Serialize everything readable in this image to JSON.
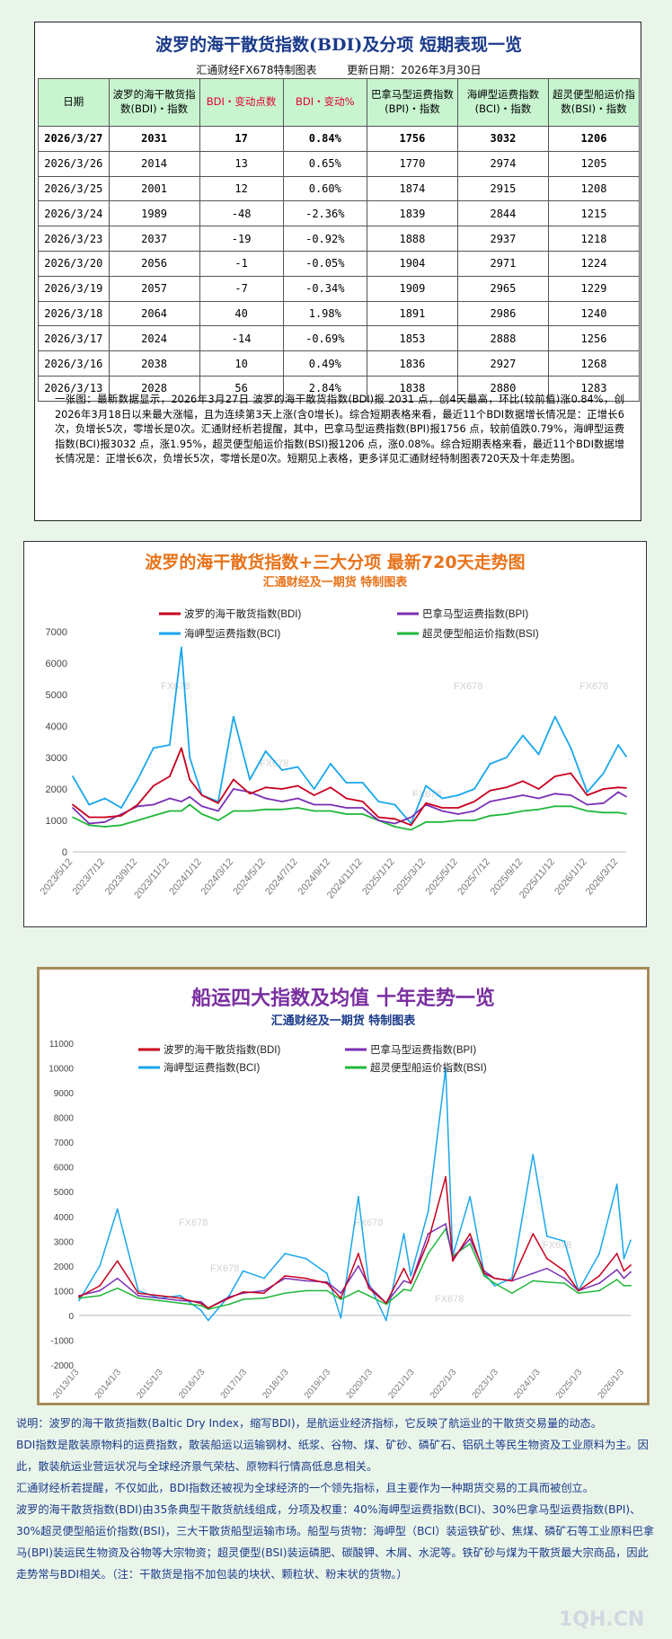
{
  "table": {
    "title": "波罗的海干散货指数(BDI)及分项  短期表现一览",
    "maker": "汇通财经FX678特制图表",
    "update": "更新日期：2026年3月30日",
    "headers": [
      "日期",
      "波罗的海干散货指数(BDI)・指数",
      "BDI・变动点数",
      "BDI・变动%",
      "巴拿马型运费指数(BPI)・指数",
      "海岬型运费指数(BCI)・指数",
      "超灵便型船运价指数(BSI)・指数"
    ],
    "rows": [
      [
        "2026/3/27",
        "2031",
        "17",
        "0.84%",
        "1756",
        "3032",
        "1206"
      ],
      [
        "2026/3/26",
        "2014",
        "13",
        "0.65%",
        "1770",
        "2974",
        "1205"
      ],
      [
        "2026/3/25",
        "2001",
        "12",
        "0.60%",
        "1874",
        "2915",
        "1208"
      ],
      [
        "2026/3/24",
        "1989",
        "-48",
        "-2.36%",
        "1839",
        "2844",
        "1215"
      ],
      [
        "2026/3/23",
        "2037",
        "-19",
        "-0.92%",
        "1888",
        "2937",
        "1218"
      ],
      [
        "2026/3/20",
        "2056",
        "-1",
        "-0.05%",
        "1904",
        "2971",
        "1224"
      ],
      [
        "2026/3/19",
        "2057",
        "-7",
        "-0.34%",
        "1909",
        "2965",
        "1229"
      ],
      [
        "2026/3/18",
        "2064",
        "40",
        "1.98%",
        "1891",
        "2986",
        "1240"
      ],
      [
        "2026/3/17",
        "2024",
        "-14",
        "-0.69%",
        "1853",
        "2888",
        "1256"
      ],
      [
        "2026/3/16",
        "2038",
        "10",
        "0.49%",
        "1836",
        "2927",
        "1268"
      ],
      [
        "2026/3/13",
        "2028",
        "56",
        "2.84%",
        "1838",
        "2880",
        "1283"
      ]
    ],
    "note": "一张图：最新数据显示，2026年3月27日 波罗的海干散货指数(BDI)报 2031 点，创4天最高，环比(较前值)涨0.84%，创2026年3月18日以来最大涨幅，且为连续第3天上涨(含0增长)。综合短期表格来看，最近11个BDI数据增长情况是：正增长6次，负增长5次，零增长是0次。汇通财经析若提醒，其中，巴拿马型运费指数(BPI)报1756 点，较前值跌0.79%，海岬型运费指数(BCI)报3032 点，涨1.95%，超灵便型船运价指数(BSI)报1206 点，涨0.08%。综合短期表格来看，最近11个BDI数据增长情况是：正增长6次，负增长5次，零增长是0次。短期见上表格，更多详见汇通财经特制图表720天及十年走势图。"
  },
  "colors": {
    "bdi": "#c8001e",
    "bpi": "#7b2fb5",
    "bci": "#1aa7ec",
    "bsi": "#1fb83a",
    "header_bg": "#c8f5d0",
    "accent_red": "#e0002a"
  },
  "chart_data": [
    {
      "type": "line",
      "title": "波罗的海干散货指数+三大分项  最新720天走势图",
      "subtitle": "汇通财经及一期货  特制图表",
      "watermark": "FX678",
      "ylim": [
        0,
        7000
      ],
      "yticks": [
        0,
        1000,
        2000,
        3000,
        4000,
        5000,
        6000,
        7000
      ],
      "xticks": [
        "2023/5/12",
        "2023/7/12",
        "2023/9/12",
        "2023/11/12",
        "2024/1/12",
        "2024/3/12",
        "2024/5/12",
        "2024/7/12",
        "2024/9/12",
        "2024/11/12",
        "2025/1/12",
        "2025/3/12",
        "2025/5/12",
        "2025/7/12",
        "2025/9/12",
        "2025/11/12",
        "2026/1/12",
        "2026/3/12"
      ],
      "x": [
        "2023/5/12",
        "2023/6/12",
        "2023/7/12",
        "2023/8/12",
        "2023/9/12",
        "2023/10/12",
        "2023/11/12",
        "2023/12/4",
        "2023/12/20",
        "2024/1/12",
        "2024/2/12",
        "2024/3/12",
        "2024/4/12",
        "2024/5/12",
        "2024/6/12",
        "2024/7/12",
        "2024/8/12",
        "2024/9/12",
        "2024/10/12",
        "2024/11/12",
        "2024/12/12",
        "2025/1/12",
        "2025/2/12",
        "2025/3/12",
        "2025/4/12",
        "2025/5/12",
        "2025/6/12",
        "2025/7/12",
        "2025/8/12",
        "2025/9/12",
        "2025/10/12",
        "2025/11/12",
        "2025/12/12",
        "2026/1/12",
        "2026/2/12",
        "2026/3/12",
        "2026/3/27"
      ],
      "series": [
        {
          "name": "波罗的海干散货指数(BDI)",
          "color": "#c8001e",
          "values": [
            1500,
            1100,
            1100,
            1150,
            1500,
            2100,
            2400,
            3300,
            2300,
            1800,
            1550,
            2300,
            1850,
            2050,
            2000,
            2100,
            1800,
            2050,
            1700,
            1600,
            1100,
            1050,
            850,
            1550,
            1400,
            1400,
            1600,
            1950,
            2050,
            2250,
            2000,
            2400,
            2500,
            1800,
            2000,
            2050,
            2031
          ]
        },
        {
          "name": "巴拿马型运费指数(BPI)",
          "color": "#7b2fb5",
          "values": [
            1400,
            900,
            950,
            1200,
            1450,
            1500,
            1700,
            1600,
            1750,
            1450,
            1300,
            2000,
            1900,
            1700,
            1600,
            1700,
            1500,
            1500,
            1400,
            1400,
            1000,
            900,
            1100,
            1500,
            1300,
            1200,
            1300,
            1600,
            1700,
            1800,
            1700,
            1850,
            1800,
            1500,
            1550,
            1900,
            1756
          ]
        },
        {
          "name": "海岬型运费指数(BCI)",
          "color": "#1aa7ec",
          "values": [
            2400,
            1500,
            1700,
            1400,
            2300,
            3300,
            3400,
            6500,
            3000,
            1800,
            1600,
            4300,
            2300,
            3200,
            2600,
            2700,
            2000,
            2800,
            2200,
            2200,
            1600,
            1500,
            900,
            2100,
            1700,
            1800,
            2000,
            2800,
            3000,
            3700,
            3100,
            4300,
            3300,
            1900,
            2500,
            3400,
            3032
          ]
        },
        {
          "name": "超灵便型船运价指数(BSI)",
          "color": "#1fb83a",
          "values": [
            1100,
            850,
            800,
            850,
            1000,
            1150,
            1300,
            1300,
            1500,
            1200,
            1000,
            1300,
            1300,
            1350,
            1350,
            1400,
            1300,
            1300,
            1200,
            1200,
            1000,
            800,
            700,
            950,
            950,
            1000,
            1000,
            1150,
            1200,
            1300,
            1350,
            1450,
            1450,
            1300,
            1250,
            1250,
            1206
          ]
        }
      ],
      "legend": "top-left"
    },
    {
      "type": "line",
      "title": "船运四大指数及均值 十年走势一览",
      "subtitle": "汇通财经及一期货 特制图表",
      "watermark": "FX678",
      "ylim": [
        -2000,
        11000
      ],
      "yticks": [
        -2000,
        -1000,
        0,
        1000,
        2000,
        3000,
        4000,
        5000,
        6000,
        7000,
        8000,
        9000,
        10000,
        11000
      ],
      "xticks": [
        "2013/1/3",
        "2014/1/3",
        "2015/1/3",
        "2016/1/3",
        "2017/1/3",
        "2018/1/3",
        "2019/1/3",
        "2020/1/3",
        "2021/1/3",
        "2022/1/3",
        "2023/1/3",
        "2024/1/3",
        "2025/1/3",
        "2026/1/3"
      ],
      "x": [
        "2013/1",
        "2013/7",
        "2013/12",
        "2014/6",
        "2014/12",
        "2015/6",
        "2015/12",
        "2016/2",
        "2016/8",
        "2016/12",
        "2017/6",
        "2017/12",
        "2018/6",
        "2018/12",
        "2019/4",
        "2019/9",
        "2019/12",
        "2020/5",
        "2020/10",
        "2020/12",
        "2021/5",
        "2021/10",
        "2021/12",
        "2022/5",
        "2022/9",
        "2022/12",
        "2023/5",
        "2023/11",
        "2024/3",
        "2024/8",
        "2024/12",
        "2025/6",
        "2025/11",
        "2026/1",
        "2026/3"
      ],
      "series": [
        {
          "name": "波罗的海干散货指数(BDI)",
          "color": "#c8001e",
          "values": [
            750,
            1200,
            2200,
            900,
            800,
            700,
            480,
            300,
            700,
            950,
            900,
            1600,
            1500,
            1300,
            700,
            2500,
            1100,
            500,
            1900,
            1300,
            3000,
            5600,
            2200,
            3300,
            1700,
            1500,
            1400,
            3300,
            2300,
            1800,
            1000,
            1600,
            2500,
            1800,
            2031
          ]
        },
        {
          "name": "巴拿马型运费指数(BPI)",
          "color": "#7b2fb5",
          "values": [
            800,
            1000,
            1500,
            800,
            700,
            600,
            550,
            300,
            750,
            900,
            1000,
            1500,
            1400,
            1350,
            900,
            2000,
            1200,
            500,
            1400,
            1300,
            3300,
            3700,
            2300,
            3100,
            1800,
            1500,
            1400,
            1700,
            1900,
            1500,
            1000,
            1300,
            1850,
            1500,
            1756
          ]
        },
        {
          "name": "海岬型运费指数(BCI)",
          "color": "#1aa7ec",
          "values": [
            600,
            2000,
            4300,
            1000,
            700,
            800,
            200,
            -200,
            800,
            1800,
            1500,
            2500,
            2300,
            1700,
            -100,
            4800,
            1300,
            -200,
            3300,
            1600,
            4200,
            10000,
            2400,
            4800,
            1700,
            1200,
            1500,
            6500,
            3200,
            3000,
            1000,
            2500,
            5300,
            2300,
            3032
          ]
        },
        {
          "name": "超灵便型船运价指数(BSI)",
          "color": "#1fb83a",
          "values": [
            700,
            800,
            1100,
            700,
            600,
            500,
            400,
            250,
            450,
            650,
            700,
            900,
            1000,
            1000,
            650,
            1000,
            800,
            450,
            1050,
            1000,
            2500,
            3500,
            2400,
            2900,
            1600,
            1300,
            900,
            1400,
            1350,
            1300,
            900,
            1000,
            1450,
            1200,
            1206
          ]
        }
      ],
      "legend": "top-left"
    }
  ],
  "description": [
    "说明：波罗的海干散货指数(Baltic Dry Index，缩写BDI)，是航运业经济指标，它反映了航运业的干散货交易量的动态。",
    "BDI指数是散装原物料的运费指数，散装船运以运输钢材、纸浆、谷物、煤、矿砂、磷矿石、铝矾土等民生物资及工业原料为主。因此，散装航运业营运状况与全球经济景气荣枯、原物料行情高低息息相关。",
    "汇通财经析若提醒，不仅如此，BDI指数还被视为全球经济的一个领先指标，且主要作为一种期货交易的工具而被创立。",
    "波罗的海干散货指数(BDI)由35条典型干散货航线组成，分项及权重：40%海岬型运费指数(BCI)、30%巴拿马型运费指数(BPI)、30%超灵便型船运价指数(BSI)，三大干散货船型运输市场。船型与货物：海岬型（BCI）装运铁矿砂、焦煤、磷矿石等工业原料巴拿马(BPI)装运民生物资及谷物等大宗物资；超灵便型(BSI)装运磷肥、碳酸钾、木屑、水泥等。铁矿砂与煤为干散货最大宗商品，因此走势常与BDI相关。（注：干散货是指不加包装的块状、颗粒状、粉末状的货物。）"
  ],
  "footer_mark": "1QH.CN"
}
